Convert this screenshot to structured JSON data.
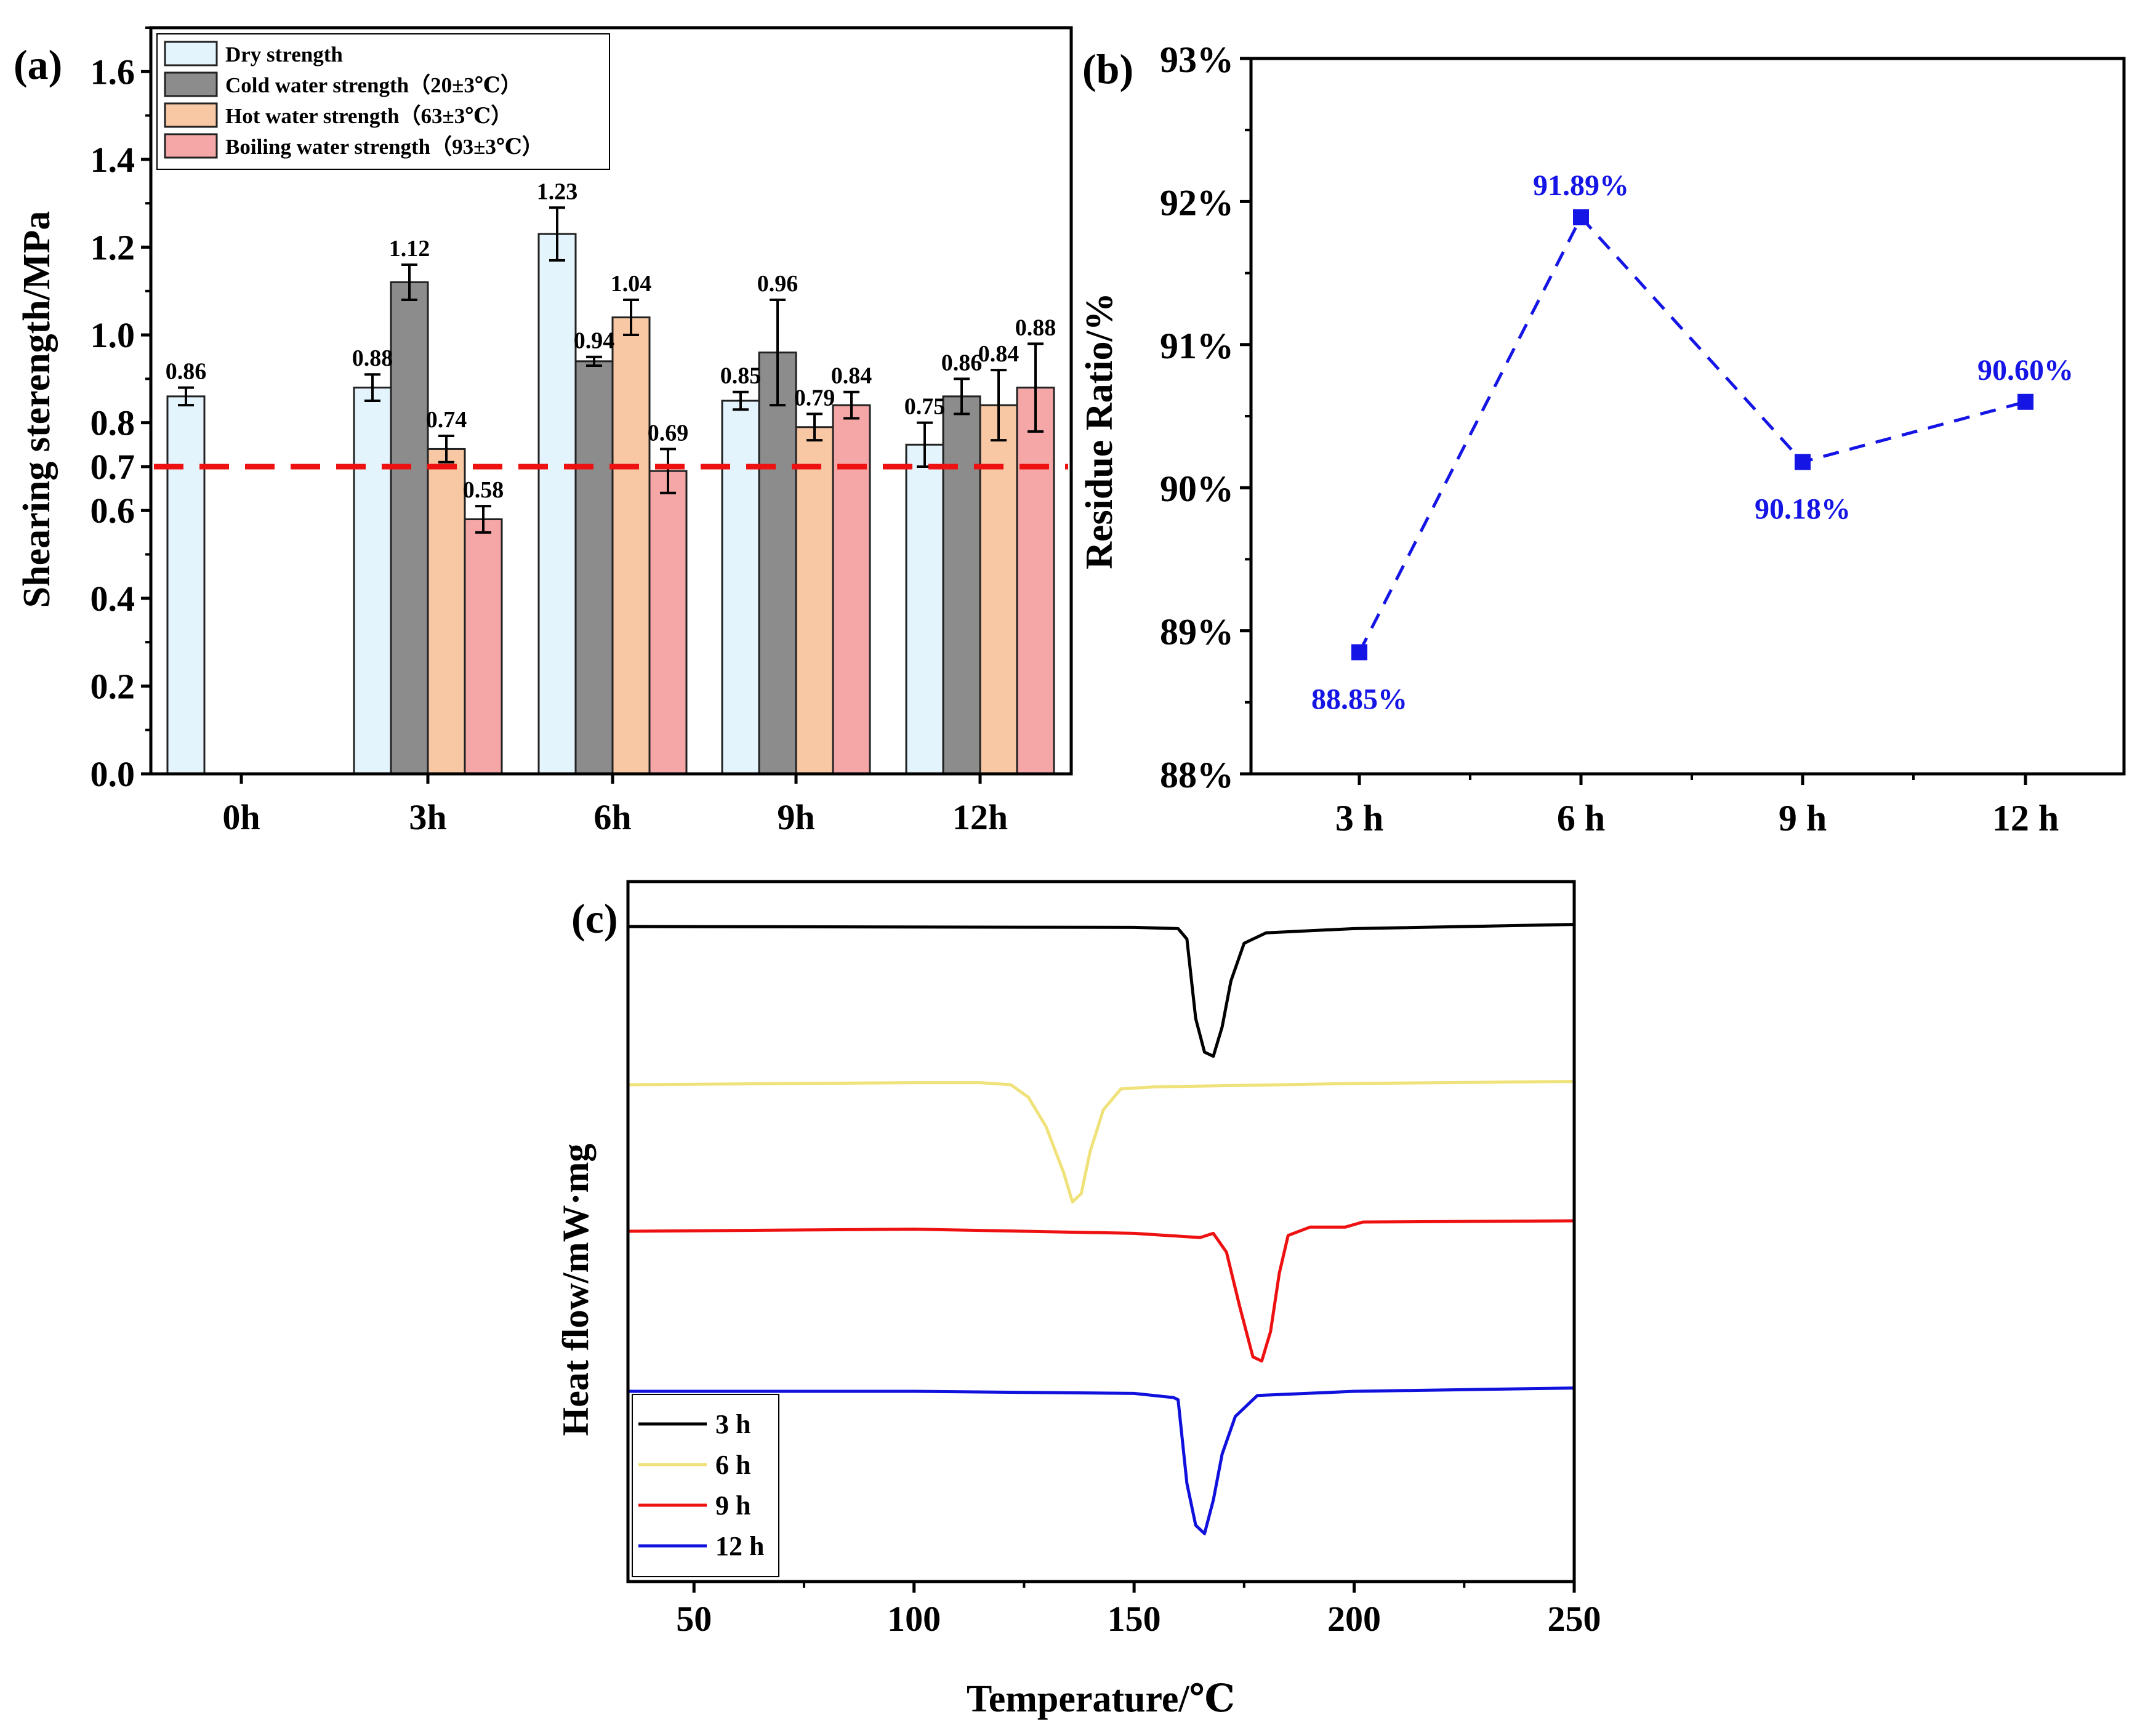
{
  "colors": {
    "dry": "#e4f4fc",
    "cold": "#8c8c8c",
    "hot": "#f8c7a3",
    "boiling": "#f5a7a7",
    "threshold": "#ee1111",
    "residue": "#1515e6",
    "c3h": "#000000",
    "c6h": "#f0e27a",
    "c9h": "#ee1111",
    "c12h": "#1111dd"
  },
  "chart_data": [
    {
      "panel": "(a)",
      "type": "bar",
      "ylabel": "Shearing sterength/MPa",
      "xlabel": "",
      "ylim": [
        0,
        1.7
      ],
      "yticks": [
        "0.0",
        "0.2",
        "0.4",
        "0.6",
        "0.7",
        "0.8",
        "1.0",
        "1.2",
        "1.4",
        "1.6"
      ],
      "categories": [
        "0h",
        "3h",
        "6h",
        "9h",
        "12h"
      ],
      "threshold": 0.7,
      "legend_position": "top-left",
      "series": [
        {
          "name": "Dry strength",
          "values": [
            0.86,
            0.88,
            1.23,
            0.85,
            0.75
          ],
          "errors": [
            0.02,
            0.03,
            0.06,
            0.02,
            0.05
          ],
          "labels": [
            "0.86",
            "0.88",
            "1.23",
            "0.85",
            "0.75"
          ]
        },
        {
          "name": "Cold water strength（20±3℃）",
          "values": [
            null,
            1.12,
            0.94,
            0.96,
            0.86
          ],
          "errors": [
            null,
            0.04,
            0.01,
            0.12,
            0.04
          ],
          "labels": [
            "",
            "1.12",
            "0.94",
            "0.96",
            "0.86"
          ]
        },
        {
          "name": "Hot water strength（63±3℃）",
          "values": [
            null,
            0.74,
            1.04,
            0.79,
            0.84
          ],
          "errors": [
            null,
            0.03,
            0.04,
            0.03,
            0.08
          ],
          "labels": [
            "",
            "0.74",
            "1.04",
            "0.79",
            "0.84"
          ]
        },
        {
          "name": "Boiling water strength（93±3℃）",
          "values": [
            null,
            0.58,
            0.69,
            0.84,
            0.88
          ],
          "errors": [
            null,
            0.03,
            0.05,
            0.03,
            0.1
          ],
          "labels": [
            "",
            "0.58",
            "0.69",
            "0.84",
            "0.88"
          ]
        }
      ]
    },
    {
      "panel": "(b)",
      "type": "line",
      "ylabel": "Residue Ratio/%",
      "xlabel": "",
      "ylim": [
        88,
        93
      ],
      "yticks": [
        "88%",
        "89%",
        "90%",
        "91%",
        "92%",
        "93%"
      ],
      "x": [
        "3 h",
        "6 h",
        "9 h",
        "12 h"
      ],
      "values": [
        88.85,
        91.89,
        90.18,
        90.6
      ],
      "labels": [
        "88.85%",
        "91.89%",
        "90.18%",
        "90.60%"
      ]
    },
    {
      "panel": "(c)",
      "type": "line",
      "xlabel": "Temperature/℃",
      "ylabel": "Heat flow/mW·mg",
      "xlim": [
        35,
        250
      ],
      "xticks": [
        "50",
        "100",
        "150",
        "200",
        "250"
      ],
      "legend_position": "bottom-left",
      "series": [
        {
          "name": "3 h",
          "baseline": 0.0,
          "points": [
            [
              35,
              0
            ],
            [
              150,
              0.02
            ],
            [
              160,
              0.05
            ],
            [
              162,
              0.3
            ],
            [
              164,
              2.2
            ],
            [
              166,
              3.0
            ],
            [
              168,
              3.1
            ],
            [
              170,
              2.4
            ],
            [
              172,
              1.3
            ],
            [
              175,
              0.4
            ],
            [
              180,
              0.15
            ],
            [
              200,
              0.05
            ],
            [
              250,
              -0.05
            ]
          ]
        },
        {
          "name": "6 h",
          "baseline": 0.0,
          "points": [
            [
              35,
              0
            ],
            [
              100,
              -0.05
            ],
            [
              115,
              -0.05
            ],
            [
              122,
              0.0
            ],
            [
              126,
              0.3
            ],
            [
              130,
              1.0
            ],
            [
              134,
              2.1
            ],
            [
              136,
              2.8
            ],
            [
              138,
              2.6
            ],
            [
              140,
              1.6
            ],
            [
              143,
              0.6
            ],
            [
              147,
              0.1
            ],
            [
              155,
              0.05
            ],
            [
              200,
              -0.03
            ],
            [
              250,
              -0.08
            ]
          ]
        },
        {
          "name": "9 h",
          "baseline": 0.0,
          "points": [
            [
              35,
              0
            ],
            [
              100,
              -0.05
            ],
            [
              150,
              0.05
            ],
            [
              165,
              0.15
            ],
            [
              168,
              0.05
            ],
            [
              171,
              0.5
            ],
            [
              174,
              1.8
            ],
            [
              177,
              3.0
            ],
            [
              179,
              3.1
            ],
            [
              181,
              2.4
            ],
            [
              183,
              1.0
            ],
            [
              185,
              0.1
            ],
            [
              190,
              -0.1
            ],
            [
              198,
              -0.1
            ],
            [
              202,
              -0.22
            ],
            [
              250,
              -0.25
            ]
          ]
        },
        {
          "name": "12 h",
          "baseline": 0.0,
          "points": [
            [
              35,
              0
            ],
            [
              100,
              0
            ],
            [
              150,
              0.05
            ],
            [
              159,
              0.15
            ],
            [
              160,
              0.2
            ],
            [
              162,
              2.2
            ],
            [
              164,
              3.2
            ],
            [
              166,
              3.4
            ],
            [
              168,
              2.6
            ],
            [
              170,
              1.5
            ],
            [
              173,
              0.6
            ],
            [
              178,
              0.1
            ],
            [
              200,
              0.0
            ],
            [
              250,
              -0.08
            ]
          ]
        }
      ]
    }
  ]
}
